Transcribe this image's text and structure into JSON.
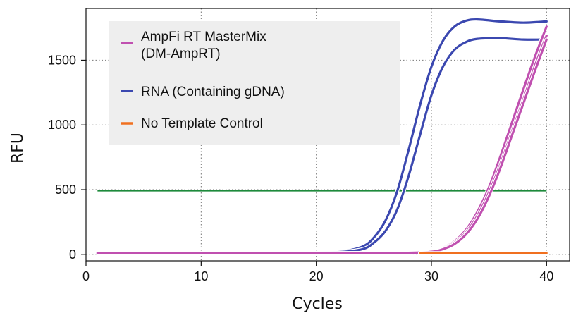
{
  "chart_data": {
    "type": "line",
    "title": "",
    "xlabel": "Cycles",
    "ylabel": "RFU",
    "xlim": [
      0,
      42
    ],
    "ylim": [
      -50,
      1900
    ],
    "xticks": [
      0,
      10,
      20,
      30,
      40
    ],
    "yticks": [
      0,
      500,
      1000,
      1500
    ],
    "grid": true,
    "legend_position": "top-left",
    "threshold": {
      "value": 490,
      "x_range": [
        1,
        40
      ],
      "color": "#1e8a3c"
    },
    "legend": [
      {
        "label_lines": [
          "AmpFi RT MasterMix",
          "(DM-AmpRT)"
        ],
        "color": "#c050b0"
      },
      {
        "label_lines": [
          "RNA (Containing gDNA)"
        ],
        "color": "#3b48b0"
      },
      {
        "label_lines": [
          "No Template Control"
        ],
        "color": "#f07020"
      }
    ],
    "series": [
      {
        "group": 1,
        "color": "#3b48b0",
        "x": [
          1,
          5,
          10,
          15,
          20,
          22,
          24,
          25,
          26,
          27,
          28,
          29,
          30,
          31,
          32,
          33,
          34,
          36,
          38,
          40
        ],
        "y": [
          10,
          10,
          10,
          12,
          15,
          20,
          60,
          130,
          260,
          480,
          800,
          1150,
          1450,
          1650,
          1760,
          1805,
          1815,
          1800,
          1790,
          1800
        ]
      },
      {
        "group": 1,
        "color": "#3b48b0",
        "x": [
          1,
          5,
          10,
          15,
          20,
          22,
          24,
          25,
          26,
          27,
          28,
          29,
          30,
          31,
          32,
          33,
          34,
          36,
          38,
          40
        ],
        "y": [
          10,
          10,
          10,
          12,
          15,
          18,
          40,
          90,
          180,
          340,
          600,
          920,
          1230,
          1450,
          1580,
          1640,
          1665,
          1670,
          1660,
          1660
        ]
      },
      {
        "group": 0,
        "color": "#c050b0",
        "x": [
          1,
          10,
          20,
          28,
          30,
          31,
          32,
          33,
          34,
          35,
          36,
          37,
          38,
          39,
          40
        ],
        "y": [
          10,
          10,
          10,
          12,
          25,
          50,
          100,
          190,
          330,
          520,
          760,
          1020,
          1280,
          1530,
          1760
        ]
      },
      {
        "group": 0,
        "color": "#c050b0",
        "x": [
          1,
          10,
          20,
          28,
          30,
          31,
          32,
          33,
          34,
          35,
          36,
          37,
          38,
          39,
          40
        ],
        "y": [
          10,
          10,
          10,
          12,
          22,
          45,
          90,
          170,
          300,
          480,
          700,
          950,
          1200,
          1460,
          1690
        ]
      },
      {
        "group": 0,
        "color": "#c050b0",
        "x": [
          1,
          10,
          20,
          28,
          30,
          31,
          32,
          33,
          34,
          35,
          36,
          37,
          38,
          39,
          40
        ],
        "y": [
          10,
          10,
          10,
          12,
          20,
          40,
          80,
          155,
          275,
          450,
          670,
          920,
          1170,
          1420,
          1660
        ]
      },
      {
        "group": 2,
        "color": "#f07020",
        "x": [
          29,
          32,
          35,
          38,
          40
        ],
        "y": [
          10,
          10,
          10,
          10,
          10
        ]
      }
    ]
  }
}
